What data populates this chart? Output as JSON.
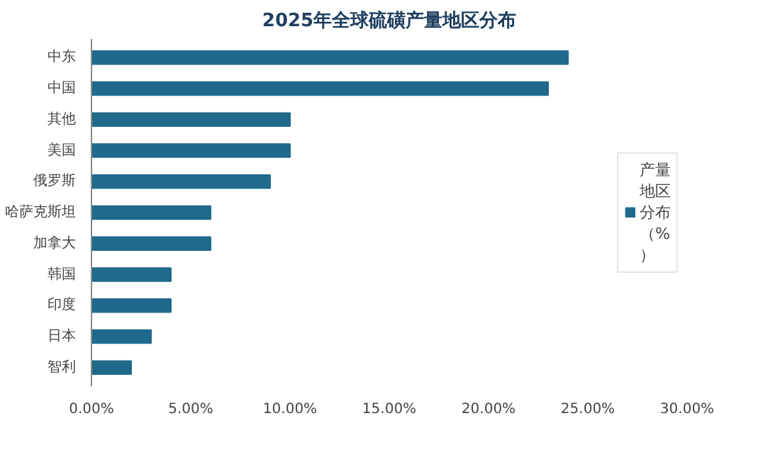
{
  "chart_data": {
    "type": "bar",
    "orientation": "horizontal",
    "title": "2025年全球硫磺产量地区分布",
    "categories": [
      "中东",
      "中国",
      "其他",
      "美国",
      "俄罗斯",
      "哈萨克斯坦",
      "加拿大",
      "韩国",
      "印度",
      "日本",
      "智利"
    ],
    "series": [
      {
        "name": "产量地区分布（%）",
        "color": "#1f6a8c",
        "values": [
          24,
          23,
          10,
          10,
          9,
          6,
          6,
          4,
          4,
          3,
          2
        ]
      }
    ],
    "xlim": [
      0,
      30
    ],
    "xticks": [
      {
        "value": 0,
        "label": "0.00%"
      },
      {
        "value": 5,
        "label": "5.00%"
      },
      {
        "value": 10,
        "label": "10.00%"
      },
      {
        "value": 15,
        "label": "15.00%"
      },
      {
        "value": 20,
        "label": "20.00%"
      },
      {
        "value": 25,
        "label": "25.00%"
      },
      {
        "value": 30,
        "label": "30.00%"
      }
    ],
    "grid": false,
    "legend": "right"
  }
}
